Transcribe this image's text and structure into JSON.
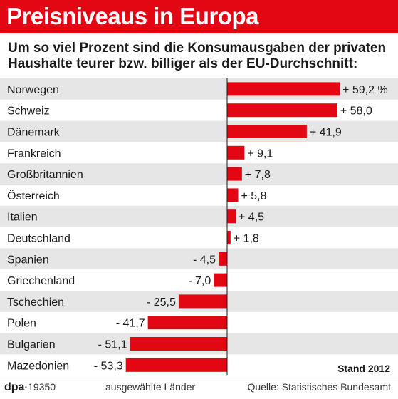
{
  "header": {
    "title": "Preisniveaus in Europa",
    "subtitle_line1": "Um so viel Prozent sind die Konsumausgaben der privaten",
    "subtitle_line2": "Haushalte teurer bzw. billiger als der EU-Durchschnitt:"
  },
  "chart_data": {
    "type": "bar",
    "orientation": "horizontal",
    "categories": [
      "Norwegen",
      "Schweiz",
      "Dänemark",
      "Frankreich",
      "Großbritannien",
      "Österreich",
      "Italien",
      "Deutschland",
      "Spanien",
      "Griechenland",
      "Tschechien",
      "Polen",
      "Bulgarien",
      "Mazedonien"
    ],
    "values": [
      59.2,
      58.0,
      41.9,
      9.1,
      7.8,
      5.8,
      4.5,
      1.8,
      -4.5,
      -7.0,
      -25.5,
      -41.7,
      -51.1,
      -53.3
    ],
    "value_labels": [
      "+ 59,2 %",
      "+ 58,0",
      "+ 41,9",
      "+ 9,1",
      "+ 7,8",
      "+ 5,8",
      "+ 4,5",
      "+ 1,8",
      "- 4,5",
      "- 7,0",
      "- 25,5",
      "- 41,7",
      "- 51,1",
      "- 53,3"
    ],
    "bar_color": "#e30613",
    "stripe_color": "#e6e6e6",
    "xlim": [
      -60,
      70
    ]
  },
  "footer": {
    "stand": "Stand 2012",
    "logo_text": "dpa",
    "logo_number": "19350",
    "note": "ausgewählte Länder",
    "source": "Quelle: Statistisches Bundesamt"
  }
}
